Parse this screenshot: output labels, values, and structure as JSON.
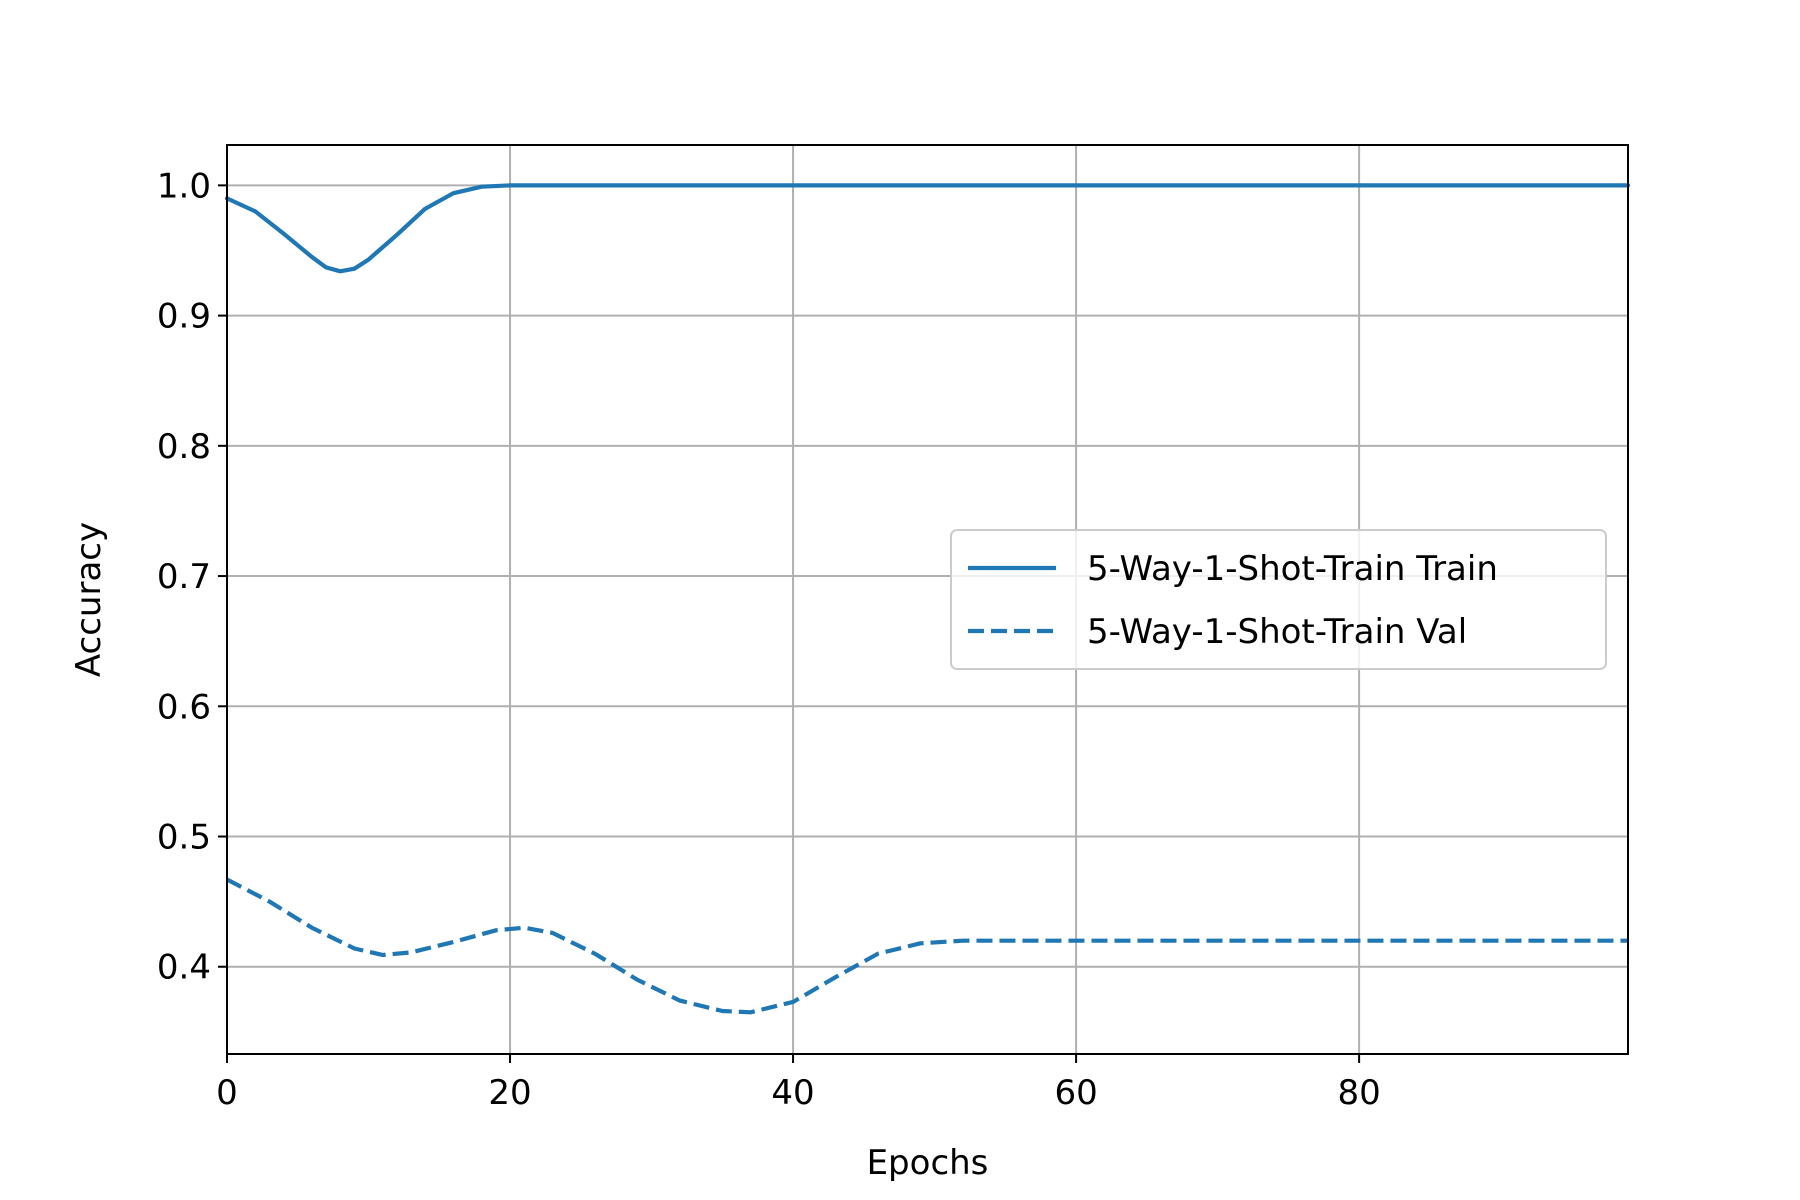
{
  "chart_data": {
    "type": "line",
    "title": "",
    "xlabel": "Epochs",
    "ylabel": "Accuracy",
    "xlim": [
      0,
      99
    ],
    "ylim": [
      0.333,
      1.031
    ],
    "xticks": [
      0,
      20,
      40,
      60,
      80
    ],
    "xtick_labels": [
      "0",
      "20",
      "40",
      "60",
      "80"
    ],
    "yticks": [
      0.4,
      0.5,
      0.6,
      0.7,
      0.8,
      0.9,
      1.0
    ],
    "ytick_labels": [
      "0.4",
      "0.5",
      "0.6",
      "0.7",
      "0.8",
      "0.9",
      "1.0"
    ],
    "grid": true,
    "legend_position": "center-right",
    "color": "#1f77b4",
    "series": [
      {
        "name": "5-Way-1-Shot-Train Train",
        "style": "solid",
        "x": [
          0,
          2,
          4,
          6,
          7,
          8,
          9,
          10,
          12,
          14,
          16,
          18,
          20,
          25,
          30,
          40,
          50,
          60,
          70,
          80,
          90,
          99
        ],
        "y": [
          0.99,
          0.98,
          0.963,
          0.945,
          0.937,
          0.934,
          0.936,
          0.943,
          0.962,
          0.982,
          0.994,
          0.999,
          1.0,
          1.0,
          1.0,
          1.0,
          1.0,
          1.0,
          1.0,
          1.0,
          1.0,
          1.0
        ]
      },
      {
        "name": "5-Way-1-Shot-Train Val",
        "style": "dashed",
        "x": [
          0,
          3,
          6,
          9,
          11,
          13,
          16,
          19,
          21,
          23,
          26,
          29,
          32,
          35,
          37,
          40,
          43,
          46,
          49,
          52,
          60,
          70,
          80,
          90,
          99
        ],
        "y": [
          0.467,
          0.45,
          0.43,
          0.414,
          0.409,
          0.411,
          0.419,
          0.428,
          0.43,
          0.426,
          0.41,
          0.39,
          0.374,
          0.366,
          0.365,
          0.373,
          0.392,
          0.41,
          0.418,
          0.42,
          0.42,
          0.42,
          0.42,
          0.42,
          0.42
        ]
      }
    ]
  }
}
